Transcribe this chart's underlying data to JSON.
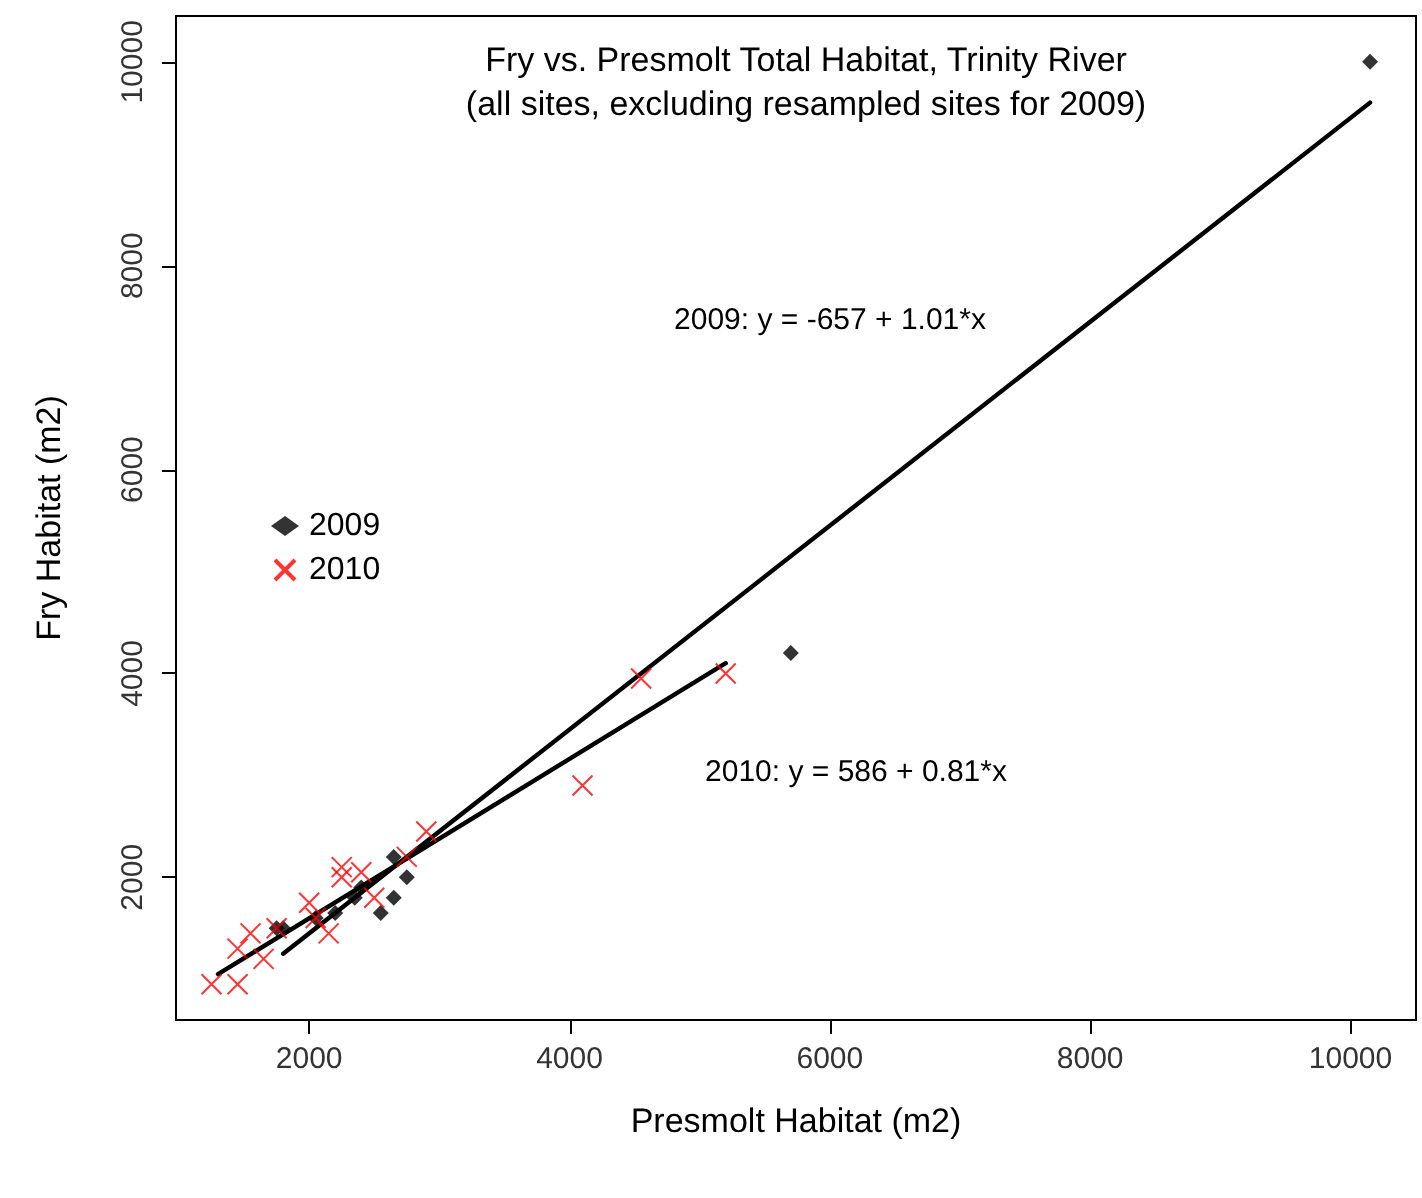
{
  "chart_data": {
    "type": "scatter",
    "title": "Fry vs. Presmolt Total Habitat, Trinity River\n(all sites, excluding resampled sites for 2009)",
    "xlabel": "Presmolt Habitat (m2)",
    "ylabel": "Fry Habitat (m2)",
    "xlim": [
      977,
      10503
    ],
    "ylim": [
      600,
      10450
    ],
    "xticks": [
      2000,
      4000,
      6000,
      8000,
      10000
    ],
    "yticks": [
      2000,
      4000,
      6000,
      8000,
      10000
    ],
    "grid": false,
    "legend": "left",
    "annotations": [
      "2009: y = -657 + 1.01*x",
      "2010: y = 586 + 0.81*x"
    ],
    "series": [
      {
        "name": "2009",
        "color": "#000000",
        "marker": "diamond",
        "x": [
          10150,
          5700,
          2650,
          2750,
          2650,
          2550,
          2400,
          2350,
          2200,
          2050,
          1800,
          1750
        ],
        "values": [
          10000,
          4200,
          2200,
          2000,
          1800,
          1650,
          1900,
          1800,
          1650,
          1600,
          1500,
          1500
        ]
      },
      {
        "name": "2010",
        "color": "#ff0000",
        "marker": "cross",
        "x": [
          1250,
          1450,
          1450,
          1550,
          1650,
          1750,
          2000,
          2150,
          2250,
          2250,
          2400,
          2500,
          2050,
          2900,
          2750,
          4100,
          4550,
          5200
        ],
        "values": [
          950,
          950,
          1300,
          1450,
          1200,
          1500,
          1750,
          1450,
          2000,
          2100,
          2050,
          1800,
          1600,
          2450,
          2200,
          2900,
          3950,
          4000
        ]
      },
      {
        "type": "line",
        "color": "#000000",
        "line_style": "solid",
        "x": [
          1800,
          10150
        ],
        "values": [
          1250,
          9600
        ]
      },
      {
        "type": "line",
        "color": "#000000",
        "line_style": "solid",
        "x": [
          1300,
          5200
        ],
        "values": [
          1050,
          4100
        ]
      }
    ]
  }
}
